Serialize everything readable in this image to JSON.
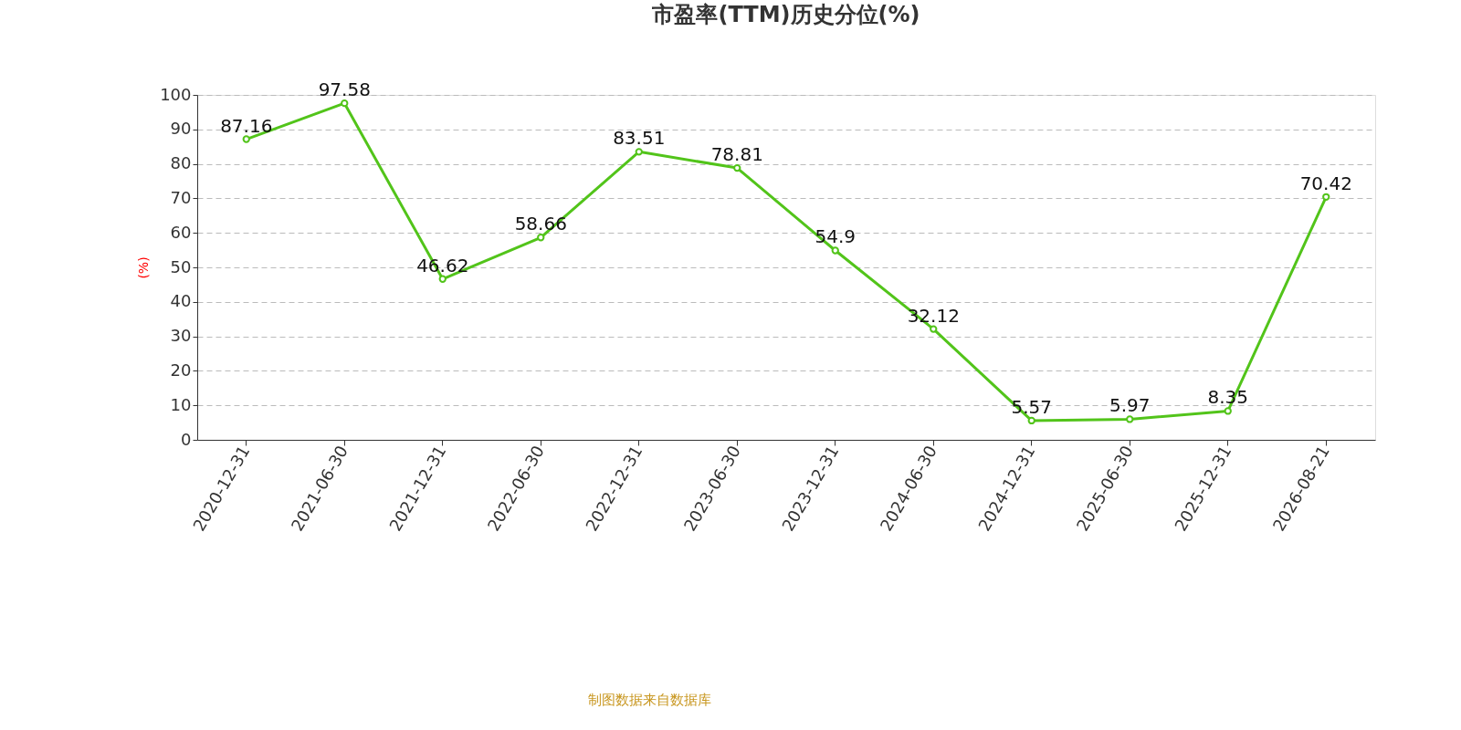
{
  "chart_data": {
    "type": "line",
    "title": "市盈率(TTM)历史分位(%)",
    "ylabel": "(%)",
    "categories": [
      "2020-12-31",
      "2021-06-30",
      "2021-12-31",
      "2022-06-30",
      "2022-12-31",
      "2023-06-30",
      "2023-12-31",
      "2024-06-30",
      "2024-12-31",
      "2025-06-30",
      "2025-12-31",
      "2026-08-21"
    ],
    "series": [
      {
        "color": "#52c41a",
        "values": [
          87.16,
          97.58,
          46.62,
          58.66,
          83.51,
          78.81,
          54.9,
          32.12,
          5.57,
          5.97,
          8.35,
          70.42
        ]
      }
    ],
    "ylim": [
      0,
      100
    ],
    "yticks": [
      0,
      10,
      20,
      30,
      40,
      50,
      60,
      70,
      80,
      90,
      100
    ],
    "grid": "y",
    "marker": "circle",
    "line_style": "solid",
    "data_labels": true,
    "annotations": [
      "制图数据来自数据库"
    ]
  }
}
